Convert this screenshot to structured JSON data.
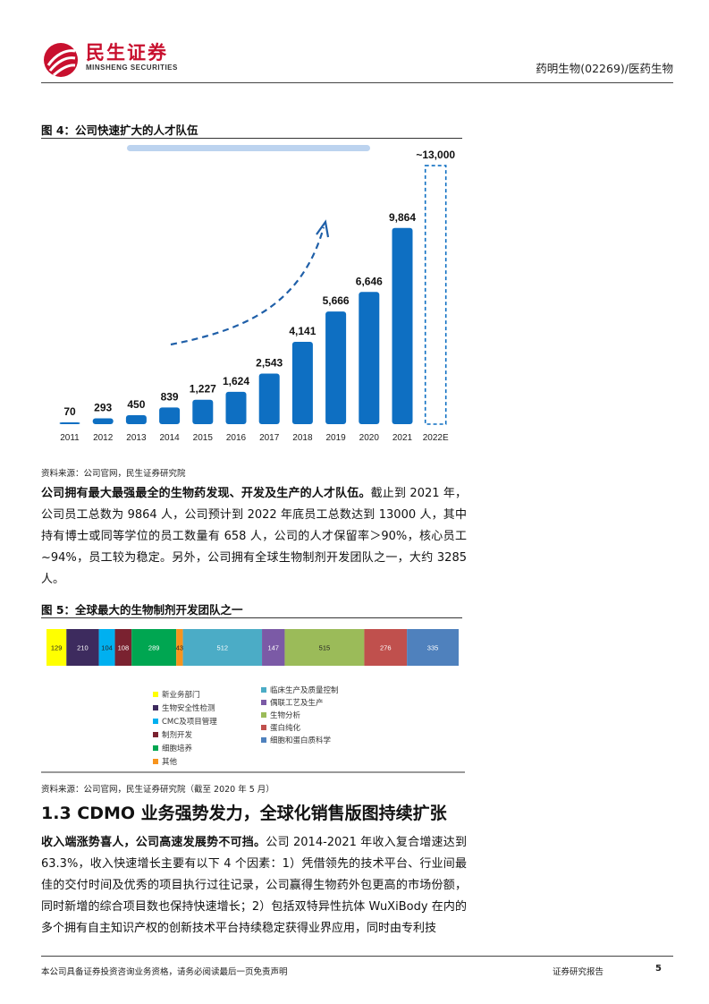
{
  "header": {
    "brand_cn": "民生证券",
    "brand_en": "MINSHENG SECURITIES",
    "report_subject": "药明生物(02269)/医药生物"
  },
  "figure4": {
    "title": "图 4：公司快速扩大的人才队伍",
    "source": "资料来源：公司官网，民生证券研究院"
  },
  "figure5": {
    "title": "图 5：全球最大的生物制剂开发团队之一",
    "source": "资料来源：公司官网，民生证券研究院（截至 2020 年 5 月）"
  },
  "paragraph1": {
    "bold": "公司拥有最大最强最全的生物药发现、开发及生产的人才队伍。",
    "rest": "截止到 2021 年，公司员工总数为 9864 人，公司预计到 2022 年底员工总数达到 13000 人，其中持有博士或同等学位的员工数量有 658 人，公司的人才保留率＞90%，核心员工~94%，员工较为稳定。另外，公司拥有全球生物制剂开发团队之一，大约 3285 人。"
  },
  "section": {
    "title": "1.3 CDMO 业务强势发力，全球化销售版图持续扩张"
  },
  "paragraph2": {
    "bold": "收入端涨势喜人，公司高速发展势不可挡。",
    "rest": "公司 2014-2021 年收入复合增速达到 63.3%，收入快速增长主要有以下 4 个因素：1）凭借领先的技术平台、行业间最佳的交付时间及优秀的项目执行过往记录，公司赢得生物药外包更高的市场份额，同时新增的综合项目数也保持快速增长；2）包括双特异性抗体 WuXiBody 在内的多个拥有自主知识产权的创新技术平台持续稳定获得业界应用，同时由专利技"
  },
  "footer": {
    "disclaimer": "本公司具备证券投资咨询业务资格，请务必阅读最后一页免责声明",
    "report_type": "证券研究报告",
    "page": "5"
  },
  "colors": {
    "brand_red": "#c8102e",
    "bar_blue": "#0e6fc2",
    "arrow_blue": "#1f5fa8"
  },
  "chart_data": [
    {
      "type": "bar",
      "title": "",
      "categories": [
        "2011",
        "2012",
        "2013",
        "2014",
        "2015",
        "2016",
        "2017",
        "2018",
        "2019",
        "2020",
        "2021",
        "2022E"
      ],
      "values": [
        70,
        293,
        450,
        839,
        1227,
        1624,
        2543,
        4141,
        5666,
        6646,
        9864,
        13000
      ],
      "labels": [
        "70",
        "293",
        "450",
        "839",
        "1,227",
        "1,624",
        "2,543",
        "4,141",
        "5,666",
        "6,646",
        "9,864",
        "~13,000"
      ],
      "estimated": [
        false,
        false,
        false,
        false,
        false,
        false,
        false,
        false,
        false,
        false,
        false,
        true
      ],
      "ylim": [
        0,
        13500
      ],
      "xlabel": "",
      "ylabel": "",
      "grid": false
    },
    {
      "type": "bar",
      "title": "",
      "orientation": "horizontal-stacked",
      "segments": [
        {
          "name": "新业务部门",
          "value": 129,
          "color": "#ffff00"
        },
        {
          "name": "生物安全性检测",
          "value": 210,
          "color": "#3d2b5e"
        },
        {
          "name": "CMC及项目管理",
          "value": 104,
          "color": "#00b0f0"
        },
        {
          "name": "制剂开发",
          "value": 108,
          "color": "#7a2230"
        },
        {
          "name": "细胞培养",
          "value": 289,
          "color": "#00a651"
        },
        {
          "name": "其他",
          "value": 43,
          "color": "#f7941d"
        },
        {
          "name": "临床生产及质量控制",
          "value": 512,
          "color": "#4bacc6"
        },
        {
          "name": "偶联工艺及生产",
          "value": 147,
          "color": "#7b5aa6"
        },
        {
          "name": "生物分析",
          "value": 515,
          "color": "#9bbb59"
        },
        {
          "name": "蛋白纯化",
          "value": 276,
          "color": "#c0504d"
        },
        {
          "name": "细胞和蛋白质科学",
          "value": 335,
          "color": "#4f81bd"
        }
      ],
      "legend_left": [
        "新业务部门",
        "生物安全性检测",
        "CMC及项目管理",
        "制剂开发",
        "细胞培养",
        "其他"
      ],
      "legend_right": [
        "临床生产及质量控制",
        "偶联工艺及生产",
        "生物分析",
        "蛋白纯化",
        "细胞和蛋白质科学"
      ],
      "legend_position": "bottom"
    }
  ]
}
